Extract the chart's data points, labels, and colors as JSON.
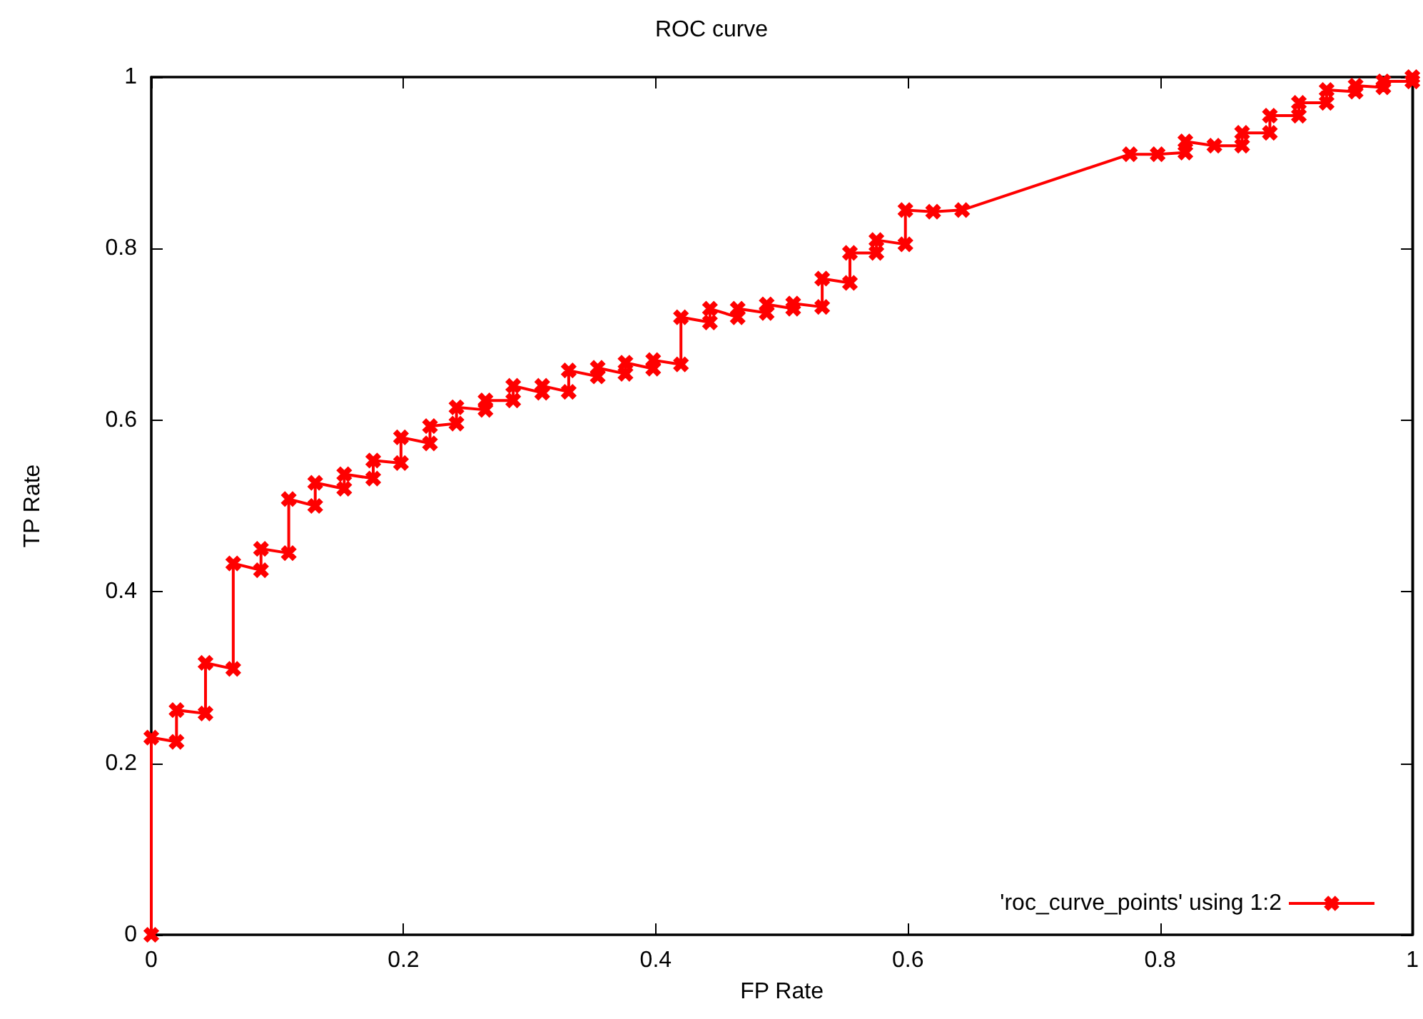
{
  "chart_data": {
    "type": "line",
    "title": "ROC curve",
    "xlabel": "FP Rate",
    "ylabel": "TP Rate",
    "xlim": [
      0,
      1
    ],
    "xticks": [
      0,
      0.2,
      0.4,
      0.6,
      0.8,
      1
    ],
    "ylim": [
      0,
      1
    ],
    "yticks": [
      0,
      0.2,
      0.4,
      0.6,
      0.8,
      1
    ],
    "grid": false,
    "legend": "bottom right",
    "marker": "cross",
    "line_style": "solid",
    "series": [
      {
        "name": "'roc_curve_points' using 1:2",
        "color": "#ff0000",
        "x": [
          0,
          0,
          0.02,
          0.02,
          0.043,
          0.043,
          0.065,
          0.065,
          0.087,
          0.087,
          0.109,
          0.109,
          0.13,
          0.13,
          0.153,
          0.153,
          0.176,
          0.176,
          0.198,
          0.198,
          0.221,
          0.221,
          0.242,
          0.242,
          0.265,
          0.265,
          0.287,
          0.287,
          0.31,
          0.31,
          0.331,
          0.331,
          0.354,
          0.354,
          0.376,
          0.376,
          0.398,
          0.398,
          0.42,
          0.42,
          0.443,
          0.443,
          0.465,
          0.465,
          0.488,
          0.488,
          0.509,
          0.509,
          0.532,
          0.532,
          0.554,
          0.554,
          0.575,
          0.575,
          0.598,
          0.598,
          0.62,
          0.643,
          0.776,
          0.798,
          0.82,
          0.82,
          0.843,
          0.865,
          0.865,
          0.887,
          0.887,
          0.91,
          0.91,
          0.932,
          0.932,
          0.955,
          0.955,
          0.977,
          0.977,
          1,
          1
        ],
        "values": [
          0,
          0.23,
          0.225,
          0.262,
          0.258,
          0.317,
          0.31,
          0.433,
          0.425,
          0.45,
          0.445,
          0.508,
          0.5,
          0.527,
          0.52,
          0.537,
          0.532,
          0.553,
          0.55,
          0.58,
          0.573,
          0.593,
          0.596,
          0.615,
          0.612,
          0.623,
          0.623,
          0.64,
          0.632,
          0.64,
          0.633,
          0.658,
          0.651,
          0.661,
          0.654,
          0.667,
          0.66,
          0.67,
          0.665,
          0.72,
          0.714,
          0.73,
          0.72,
          0.73,
          0.725,
          0.735,
          0.73,
          0.736,
          0.732,
          0.765,
          0.76,
          0.795,
          0.795,
          0.81,
          0.805,
          0.845,
          0.843,
          0.845,
          0.91,
          0.91,
          0.912,
          0.925,
          0.92,
          0.92,
          0.935,
          0.935,
          0.955,
          0.955,
          0.97,
          0.97,
          0.985,
          0.983,
          0.99,
          0.988,
          0.995,
          0.995,
          1
        ]
      }
    ]
  }
}
